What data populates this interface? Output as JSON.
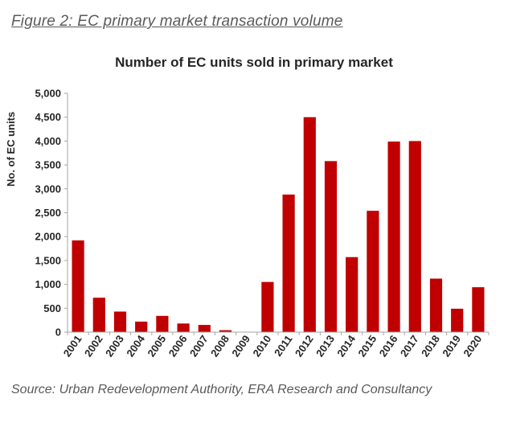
{
  "figure_caption": "Figure 2: EC primary market transaction volume",
  "source": "Source: Urban Redevelopment Authority, ERA Research and Consultancy",
  "colors": {
    "bar": "#c00000",
    "axis": "#a6a6a6"
  },
  "chart_data": {
    "type": "bar",
    "title": "Number of EC units sold in primary market",
    "xlabel": "",
    "ylabel": "No. of EC units",
    "ylim": [
      0,
      5000
    ],
    "yticks": [
      "0",
      "500",
      "1,000",
      "1,500",
      "2,000",
      "2,500",
      "3,000",
      "3,500",
      "4,000",
      "4,500",
      "5,000"
    ],
    "ytick_values": [
      0,
      500,
      1000,
      1500,
      2000,
      2500,
      3000,
      3500,
      4000,
      4500,
      5000
    ],
    "grid": false,
    "categories": [
      "2001",
      "2002",
      "2003",
      "2004",
      "2005",
      "2006",
      "2007",
      "2008",
      "2009",
      "2010",
      "2011",
      "2012",
      "2013",
      "2014",
      "2015",
      "2016",
      "2017",
      "2018",
      "2019",
      "2020"
    ],
    "values": [
      1920,
      720,
      430,
      220,
      340,
      180,
      150,
      40,
      0,
      1050,
      2880,
      4500,
      3580,
      1570,
      2540,
      3990,
      4000,
      1120,
      490,
      940
    ]
  }
}
